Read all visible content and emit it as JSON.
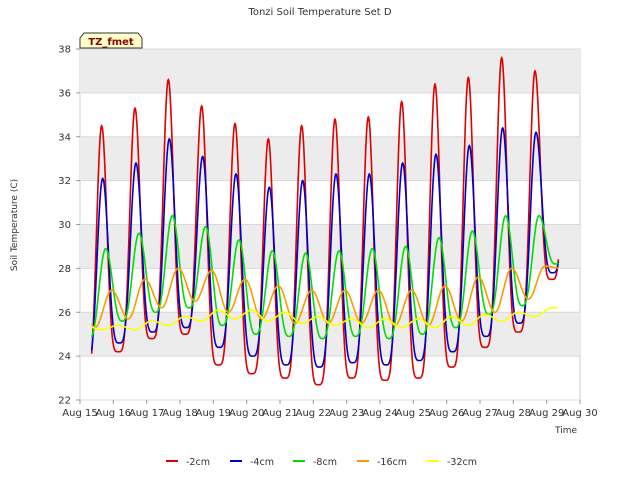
{
  "chart_data": {
    "type": "line",
    "title": "Tonzi Soil Temperature Set D",
    "xlabel": "Time",
    "ylabel": "Soil Temperature (C)",
    "badge": "TZ_fmet",
    "x_ticks": [
      "Aug 15",
      "Aug 16",
      "Aug 17",
      "Aug 18",
      "Aug 19",
      "Aug 20",
      "Aug 21",
      "Aug 22",
      "Aug 23",
      "Aug 24",
      "Aug 25",
      "Aug 26",
      "Aug 27",
      "Aug 28",
      "Aug 29",
      "Aug 30"
    ],
    "xlim": [
      15,
      30
    ],
    "y_ticks": [
      "22",
      "24",
      "26",
      "28",
      "30",
      "32",
      "34",
      "36",
      "38"
    ],
    "ylim": [
      22,
      38
    ],
    "grid": true,
    "legend_position": "bottom",
    "daily_peaks": [
      15.65,
      16.65,
      17.65,
      18.65,
      19.65,
      20.65,
      21.65,
      22.65,
      23.65,
      24.65,
      25.65,
      26.65,
      27.65,
      28.65
    ],
    "series": [
      {
        "name": "-2cm",
        "color": "#dd0000",
        "daily_min": [
          23.0,
          24.2,
          24.8,
          25.0,
          23.6,
          23.2,
          23.0,
          22.7,
          23.0,
          22.9,
          23.0,
          23.5,
          24.4,
          25.1,
          27.5
        ],
        "daily_max": [
          34.5,
          35.3,
          36.6,
          35.4,
          34.6,
          33.9,
          34.5,
          34.8,
          34.9,
          35.6,
          36.4,
          36.7,
          37.6,
          37.0
        ]
      },
      {
        "name": "-4cm",
        "color": "#0000cc",
        "daily_min": [
          23.6,
          24.6,
          25.1,
          25.3,
          24.4,
          24.0,
          23.6,
          23.5,
          23.7,
          23.6,
          23.8,
          24.2,
          24.9,
          25.5,
          27.8
        ],
        "daily_max": [
          32.1,
          32.8,
          33.9,
          33.1,
          32.3,
          31.7,
          32.0,
          32.3,
          32.3,
          32.8,
          33.2,
          33.6,
          34.4,
          34.2
        ]
      },
      {
        "name": "-8cm",
        "color": "#00dd00",
        "daily_min": [
          24.8,
          25.6,
          26.0,
          26.2,
          25.4,
          25.0,
          24.9,
          24.8,
          24.9,
          24.8,
          25.0,
          25.3,
          25.9,
          26.3,
          28.2
        ],
        "daily_max": [
          28.9,
          29.6,
          30.4,
          29.9,
          29.3,
          28.8,
          28.7,
          28.8,
          28.9,
          29.0,
          29.4,
          29.7,
          30.4,
          30.4
        ]
      },
      {
        "name": "-16cm",
        "color": "#ff9900",
        "daily_min": [
          25.3,
          25.7,
          26.2,
          26.5,
          26.0,
          25.7,
          25.5,
          25.5,
          25.5,
          25.4,
          25.4,
          25.6,
          26.0,
          26.6,
          28.0
        ],
        "daily_max": [
          27.0,
          27.5,
          28.0,
          27.9,
          27.5,
          27.2,
          27.0,
          27.0,
          27.0,
          27.0,
          27.2,
          27.6,
          28.0,
          28.1
        ]
      },
      {
        "name": "-32cm",
        "color": "#ffff00",
        "daily_min": [
          25.2,
          25.2,
          25.4,
          25.6,
          25.7,
          25.6,
          25.5,
          25.4,
          25.3,
          25.3,
          25.3,
          25.4,
          25.6,
          25.8,
          26.2
        ],
        "daily_max": [
          25.4,
          25.6,
          25.8,
          26.1,
          26.1,
          26.0,
          25.8,
          25.7,
          25.7,
          25.7,
          25.8,
          25.9,
          26.0,
          26.2
        ]
      }
    ]
  }
}
